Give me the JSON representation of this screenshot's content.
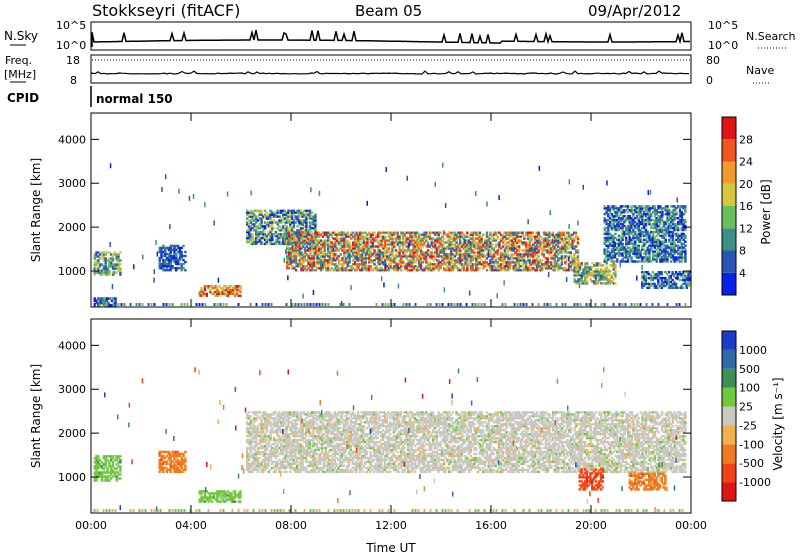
{
  "header": {
    "station": "Stokkseyri (fitACF)",
    "beam": "Beam 05",
    "date": "09/Apr/2012"
  },
  "top_panels": {
    "nsky_label": "N.Sky",
    "nsearch_label": "N.Search",
    "nsky_ticks": [
      "10^5",
      "10^0"
    ],
    "nsearch_ticks": [
      "10^5",
      "10^0"
    ],
    "freq_label": "Freq.",
    "freq_unit": "[MHz]",
    "freq_ticks": [
      "18",
      "8"
    ],
    "nave_label": "Nave",
    "nave_ticks": [
      "80",
      "0"
    ],
    "cpid_label": "CPID",
    "cpid_value": "normal 150"
  },
  "chart_data": [
    {
      "type": "heatmap",
      "panel": "power",
      "xlabel": "",
      "ylabel": "Slant Range [km]",
      "x_range_hours": [
        0,
        24
      ],
      "ylim": [
        180,
        4600
      ],
      "y_ticks": [
        1000,
        2000,
        3000,
        4000
      ],
      "colorbar": {
        "label": "Power [dB]",
        "ticks": [
          "4",
          "8",
          "12",
          "16",
          "20",
          "24",
          "28"
        ],
        "colors": [
          "#0a1fe8",
          "#2a55b5",
          "#3f8f86",
          "#6cbf5c",
          "#d6c83c",
          "#f29a2c",
          "#f05520",
          "#e01414"
        ]
      },
      "regions": [
        {
          "t": [
            0.1,
            1.2
          ],
          "r": [
            900,
            1450
          ],
          "level": "8-16"
        },
        {
          "t": [
            0.1,
            1.0
          ],
          "r": [
            200,
            400
          ],
          "level": "4-12"
        },
        {
          "t": [
            2.7,
            3.8
          ],
          "r": [
            1000,
            1600
          ],
          "level": "4-8"
        },
        {
          "t": [
            4.3,
            6.0
          ],
          "r": [
            420,
            680
          ],
          "level": "16-28"
        },
        {
          "t": [
            6.2,
            9.0
          ],
          "r": [
            1600,
            2400
          ],
          "level": "4-16"
        },
        {
          "t": [
            7.8,
            19.5
          ],
          "r": [
            1000,
            1900
          ],
          "level": "8-28"
        },
        {
          "t": [
            19.3,
            21.0
          ],
          "r": [
            700,
            1200
          ],
          "level": "8-20"
        },
        {
          "t": [
            20.5,
            23.8
          ],
          "r": [
            1200,
            2500
          ],
          "level": "4-12"
        },
        {
          "t": [
            22.0,
            24.0
          ],
          "r": [
            600,
            1000
          ],
          "level": "4-12"
        }
      ]
    },
    {
      "type": "heatmap",
      "panel": "velocity",
      "xlabel": "Time UT",
      "ylabel": "Slant Range [km]",
      "x_range_hours": [
        0,
        24
      ],
      "ylim": [
        180,
        4600
      ],
      "y_ticks": [
        1000,
        2000,
        3000,
        4000
      ],
      "x_ticks": [
        "00:00",
        "04:00",
        "08:00",
        "12:00",
        "16:00",
        "20:00",
        "00:00"
      ],
      "colorbar": {
        "label": "Velocity [m s⁻¹]",
        "ticks": [
          "1000",
          "500",
          "100",
          "25",
          "-25",
          "-100",
          "-500",
          "-1000"
        ],
        "colors": [
          "#1c3cc8",
          "#2f6aa8",
          "#3f8f55",
          "#70c83c",
          "#c8c8c0",
          "#f0b050",
          "#f07a20",
          "#f04418",
          "#e01414"
        ]
      },
      "regions": [
        {
          "t": [
            0.1,
            1.2
          ],
          "r": [
            900,
            1500
          ],
          "level": "25 to 100"
        },
        {
          "t": [
            2.7,
            3.8
          ],
          "r": [
            1100,
            1600
          ],
          "level": "-100 to -500"
        },
        {
          "t": [
            4.3,
            6.0
          ],
          "r": [
            420,
            700
          ],
          "level": "25 to 100"
        },
        {
          "t": [
            6.2,
            23.8
          ],
          "r": [
            1100,
            2500
          ],
          "level": "-25 to 25"
        },
        {
          "t": [
            19.5,
            20.5
          ],
          "r": [
            700,
            1200
          ],
          "level": "-500 to -1000"
        },
        {
          "t": [
            21.5,
            23.0
          ],
          "r": [
            700,
            1100
          ],
          "level": "-100 to -500"
        }
      ]
    }
  ]
}
